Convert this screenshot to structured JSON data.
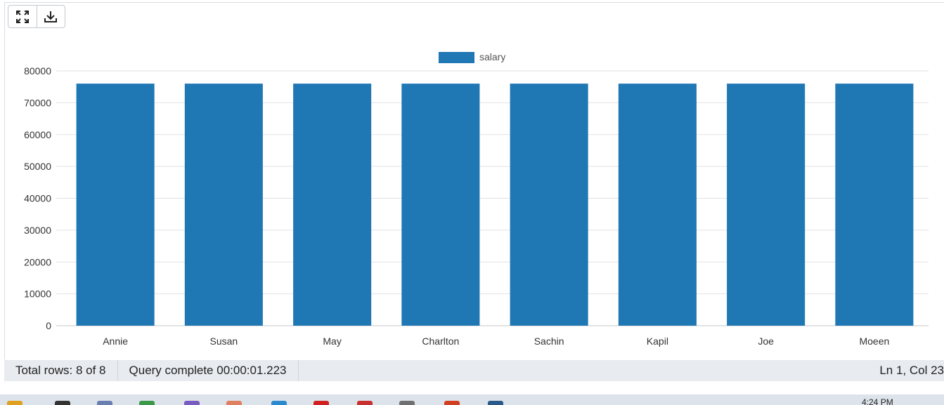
{
  "toolbar": {
    "buttons": [
      {
        "name": "expand-icon"
      },
      {
        "name": "download-icon"
      }
    ]
  },
  "chart_data": {
    "type": "bar",
    "categories": [
      "Annie",
      "Susan",
      "May",
      "Charlton",
      "Sachin",
      "Kapil",
      "Joe",
      "Moeen"
    ],
    "series": [
      {
        "name": "salary",
        "values": [
          76000,
          76000,
          76000,
          76000,
          76000,
          76000,
          76000,
          76000
        ],
        "color": "#1f77b4"
      }
    ],
    "yticks": [
      "0",
      "10000",
      "20000",
      "30000",
      "40000",
      "50000",
      "60000",
      "70000",
      "80000"
    ],
    "ylim": [
      0,
      80000
    ],
    "grid": true,
    "legend_position": "top-center"
  },
  "status": {
    "total_rows": "Total rows: 8 of 8",
    "query": "Query complete 00:00:01.223",
    "position": "Ln 1, Col 23"
  },
  "taskbar": {
    "time": "4:24 PM",
    "icons": [
      "#e0a020",
      "#333333",
      "#6a7fb0",
      "#3a9a4a",
      "#7a5bc0",
      "#e08060",
      "#2a8ad0",
      "#d02020",
      "#c83030",
      "#707070",
      "#d04020",
      "#2a5a8a"
    ]
  }
}
